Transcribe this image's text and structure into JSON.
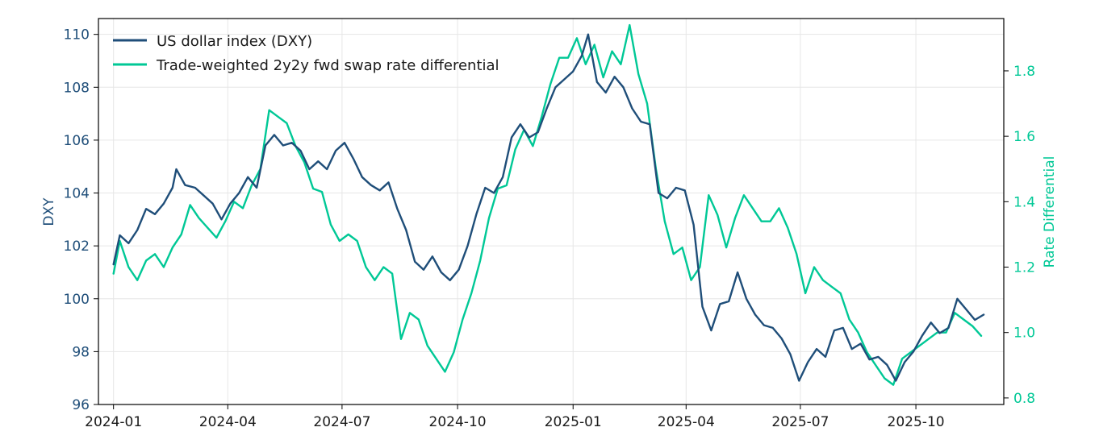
{
  "chart_data": {
    "type": "line",
    "title": "",
    "xlabel": "",
    "ylabel": "DXY",
    "ylabel_right": "Rate Differential",
    "grid": true,
    "legend_position": "top-left",
    "x_ticks": [
      "2024-01",
      "2024-04",
      "2024-07",
      "2024-10",
      "2025-01",
      "2025-04",
      "2025-07",
      "2025-10"
    ],
    "x_range": [
      "2023-12-20",
      "2025-12-10"
    ],
    "y_left": {
      "range": [
        96,
        110.6
      ],
      "ticks": [
        "96",
        "98",
        "100",
        "102",
        "104",
        "106",
        "108",
        "110"
      ],
      "color": "#1f4e79"
    },
    "y_right": {
      "range": [
        0.78,
        1.96
      ],
      "ticks": [
        "0.8",
        "1.0",
        "1.2",
        "1.4",
        "1.6",
        "1.8"
      ],
      "color": "#00c896"
    },
    "series": [
      {
        "name": "US dollar index (DXY)",
        "axis": "left",
        "color": "#1f4e79",
        "points": [
          [
            "2024-01-01",
            101.3
          ],
          [
            "2024-01-06",
            102.4
          ],
          [
            "2024-01-13",
            102.1
          ],
          [
            "2024-01-20",
            102.6
          ],
          [
            "2024-01-27",
            103.4
          ],
          [
            "2024-02-03",
            103.2
          ],
          [
            "2024-02-10",
            103.6
          ],
          [
            "2024-02-17",
            104.2
          ],
          [
            "2024-02-20",
            104.9
          ],
          [
            "2024-02-27",
            104.3
          ],
          [
            "2024-03-06",
            104.2
          ],
          [
            "2024-03-13",
            103.9
          ],
          [
            "2024-03-20",
            103.6
          ],
          [
            "2024-03-27",
            103.0
          ],
          [
            "2024-04-03",
            103.6
          ],
          [
            "2024-04-10",
            104.0
          ],
          [
            "2024-04-17",
            104.6
          ],
          [
            "2024-04-24",
            104.2
          ],
          [
            "2024-05-01",
            105.8
          ],
          [
            "2024-05-08",
            106.2
          ],
          [
            "2024-05-15",
            105.8
          ],
          [
            "2024-05-22",
            105.9
          ],
          [
            "2024-05-29",
            105.6
          ],
          [
            "2024-06-05",
            104.9
          ],
          [
            "2024-06-12",
            105.2
          ],
          [
            "2024-06-19",
            104.9
          ],
          [
            "2024-06-26",
            105.6
          ],
          [
            "2024-07-03",
            105.9
          ],
          [
            "2024-07-10",
            105.3
          ],
          [
            "2024-07-17",
            104.6
          ],
          [
            "2024-07-24",
            104.3
          ],
          [
            "2024-07-31",
            104.1
          ],
          [
            "2024-08-07",
            104.4
          ],
          [
            "2024-08-14",
            103.4
          ],
          [
            "2024-08-21",
            102.6
          ],
          [
            "2024-08-28",
            101.4
          ],
          [
            "2024-09-04",
            101.1
          ],
          [
            "2024-09-11",
            101.6
          ],
          [
            "2024-09-18",
            101.0
          ],
          [
            "2024-09-25",
            100.7
          ],
          [
            "2024-10-02",
            101.1
          ],
          [
            "2024-10-09",
            102.0
          ],
          [
            "2024-10-16",
            103.2
          ],
          [
            "2024-10-23",
            104.2
          ],
          [
            "2024-10-30",
            104.0
          ],
          [
            "2024-11-06",
            104.6
          ],
          [
            "2024-11-13",
            106.1
          ],
          [
            "2024-11-20",
            106.6
          ],
          [
            "2024-11-27",
            106.1
          ],
          [
            "2024-12-04",
            106.3
          ],
          [
            "2024-12-11",
            107.2
          ],
          [
            "2024-12-18",
            108.0
          ],
          [
            "2024-12-25",
            108.3
          ],
          [
            "2025-01-01",
            108.6
          ],
          [
            "2025-01-08",
            109.2
          ],
          [
            "2025-01-13",
            110.0
          ],
          [
            "2025-01-20",
            108.2
          ],
          [
            "2025-01-27",
            107.8
          ],
          [
            "2025-02-03",
            108.4
          ],
          [
            "2025-02-10",
            108.0
          ],
          [
            "2025-02-17",
            107.2
          ],
          [
            "2025-02-24",
            106.7
          ],
          [
            "2025-03-03",
            106.6
          ],
          [
            "2025-03-10",
            104.0
          ],
          [
            "2025-03-17",
            103.8
          ],
          [
            "2025-03-24",
            104.2
          ],
          [
            "2025-03-31",
            104.1
          ],
          [
            "2025-04-07",
            102.8
          ],
          [
            "2025-04-14",
            99.7
          ],
          [
            "2025-04-21",
            98.8
          ],
          [
            "2025-04-28",
            99.8
          ],
          [
            "2025-05-05",
            99.9
          ],
          [
            "2025-05-12",
            101.0
          ],
          [
            "2025-05-19",
            100.0
          ],
          [
            "2025-05-26",
            99.4
          ],
          [
            "2025-06-02",
            99.0
          ],
          [
            "2025-06-09",
            98.9
          ],
          [
            "2025-06-16",
            98.5
          ],
          [
            "2025-06-23",
            97.9
          ],
          [
            "2025-06-30",
            96.9
          ],
          [
            "2025-07-07",
            97.6
          ],
          [
            "2025-07-14",
            98.1
          ],
          [
            "2025-07-21",
            97.8
          ],
          [
            "2025-07-28",
            98.8
          ],
          [
            "2025-08-04",
            98.9
          ],
          [
            "2025-08-11",
            98.1
          ],
          [
            "2025-08-18",
            98.3
          ],
          [
            "2025-08-25",
            97.7
          ],
          [
            "2025-09-01",
            97.8
          ],
          [
            "2025-09-08",
            97.5
          ],
          [
            "2025-09-15",
            96.9
          ],
          [
            "2025-09-22",
            97.6
          ],
          [
            "2025-09-29",
            98.0
          ],
          [
            "2025-10-06",
            98.6
          ],
          [
            "2025-10-13",
            99.1
          ],
          [
            "2025-10-20",
            98.7
          ],
          [
            "2025-10-27",
            98.9
          ],
          [
            "2025-11-03",
            100.0
          ],
          [
            "2025-11-10",
            99.6
          ],
          [
            "2025-11-17",
            99.2
          ],
          [
            "2025-11-24",
            99.4
          ]
        ]
      },
      {
        "name": "Trade-weighted 2y2y fwd swap rate differential",
        "axis": "right",
        "color": "#00c896",
        "points": [
          [
            "2024-01-01",
            1.18
          ],
          [
            "2024-01-06",
            1.28
          ],
          [
            "2024-01-13",
            1.2
          ],
          [
            "2024-01-20",
            1.16
          ],
          [
            "2024-01-27",
            1.22
          ],
          [
            "2024-02-03",
            1.24
          ],
          [
            "2024-02-10",
            1.2
          ],
          [
            "2024-02-17",
            1.26
          ],
          [
            "2024-02-24",
            1.3
          ],
          [
            "2024-03-02",
            1.39
          ],
          [
            "2024-03-09",
            1.35
          ],
          [
            "2024-03-16",
            1.32
          ],
          [
            "2024-03-23",
            1.29
          ],
          [
            "2024-03-30",
            1.34
          ],
          [
            "2024-04-06",
            1.4
          ],
          [
            "2024-04-13",
            1.38
          ],
          [
            "2024-04-20",
            1.45
          ],
          [
            "2024-04-27",
            1.5
          ],
          [
            "2024-05-04",
            1.68
          ],
          [
            "2024-05-11",
            1.66
          ],
          [
            "2024-05-18",
            1.64
          ],
          [
            "2024-05-25",
            1.57
          ],
          [
            "2024-06-01",
            1.52
          ],
          [
            "2024-06-08",
            1.44
          ],
          [
            "2024-06-15",
            1.43
          ],
          [
            "2024-06-22",
            1.33
          ],
          [
            "2024-06-29",
            1.28
          ],
          [
            "2024-07-06",
            1.3
          ],
          [
            "2024-07-13",
            1.28
          ],
          [
            "2024-07-20",
            1.2
          ],
          [
            "2024-07-27",
            1.16
          ],
          [
            "2024-08-03",
            1.2
          ],
          [
            "2024-08-10",
            1.18
          ],
          [
            "2024-08-17",
            0.98
          ],
          [
            "2024-08-24",
            1.06
          ],
          [
            "2024-08-31",
            1.04
          ],
          [
            "2024-09-07",
            0.96
          ],
          [
            "2024-09-14",
            0.92
          ],
          [
            "2024-09-21",
            0.88
          ],
          [
            "2024-09-28",
            0.94
          ],
          [
            "2024-10-05",
            1.04
          ],
          [
            "2024-10-12",
            1.12
          ],
          [
            "2024-10-19",
            1.22
          ],
          [
            "2024-10-26",
            1.35
          ],
          [
            "2024-11-02",
            1.44
          ],
          [
            "2024-11-09",
            1.45
          ],
          [
            "2024-11-16",
            1.56
          ],
          [
            "2024-11-23",
            1.62
          ],
          [
            "2024-11-30",
            1.57
          ],
          [
            "2024-12-07",
            1.66
          ],
          [
            "2024-12-14",
            1.76
          ],
          [
            "2024-12-21",
            1.84
          ],
          [
            "2024-12-28",
            1.84
          ],
          [
            "2025-01-04",
            1.9
          ],
          [
            "2025-01-11",
            1.82
          ],
          [
            "2025-01-18",
            1.88
          ],
          [
            "2025-01-25",
            1.78
          ],
          [
            "2025-02-01",
            1.86
          ],
          [
            "2025-02-08",
            1.82
          ],
          [
            "2025-02-15",
            1.94
          ],
          [
            "2025-02-22",
            1.79
          ],
          [
            "2025-03-01",
            1.7
          ],
          [
            "2025-03-08",
            1.5
          ],
          [
            "2025-03-15",
            1.34
          ],
          [
            "2025-03-22",
            1.24
          ],
          [
            "2025-03-29",
            1.26
          ],
          [
            "2025-04-05",
            1.16
          ],
          [
            "2025-04-12",
            1.2
          ],
          [
            "2025-04-19",
            1.42
          ],
          [
            "2025-04-26",
            1.36
          ],
          [
            "2025-05-03",
            1.26
          ],
          [
            "2025-05-10",
            1.35
          ],
          [
            "2025-05-17",
            1.42
          ],
          [
            "2025-05-24",
            1.38
          ],
          [
            "2025-05-31",
            1.34
          ],
          [
            "2025-06-07",
            1.34
          ],
          [
            "2025-06-14",
            1.38
          ],
          [
            "2025-06-21",
            1.32
          ],
          [
            "2025-06-28",
            1.24
          ],
          [
            "2025-07-05",
            1.12
          ],
          [
            "2025-07-12",
            1.2
          ],
          [
            "2025-07-19",
            1.16
          ],
          [
            "2025-07-26",
            1.14
          ],
          [
            "2025-08-02",
            1.12
          ],
          [
            "2025-08-09",
            1.04
          ],
          [
            "2025-08-16",
            1.0
          ],
          [
            "2025-08-23",
            0.94
          ],
          [
            "2025-08-30",
            0.9
          ],
          [
            "2025-09-06",
            0.86
          ],
          [
            "2025-09-13",
            0.84
          ],
          [
            "2025-09-20",
            0.92
          ],
          [
            "2025-09-27",
            0.94
          ],
          [
            "2025-10-04",
            0.96
          ],
          [
            "2025-10-11",
            0.98
          ],
          [
            "2025-10-18",
            1.0
          ],
          [
            "2025-10-25",
            1.0
          ],
          [
            "2025-11-01",
            1.06
          ],
          [
            "2025-11-08",
            1.04
          ],
          [
            "2025-11-15",
            1.02
          ],
          [
            "2025-11-22",
            0.99
          ]
        ]
      }
    ]
  }
}
